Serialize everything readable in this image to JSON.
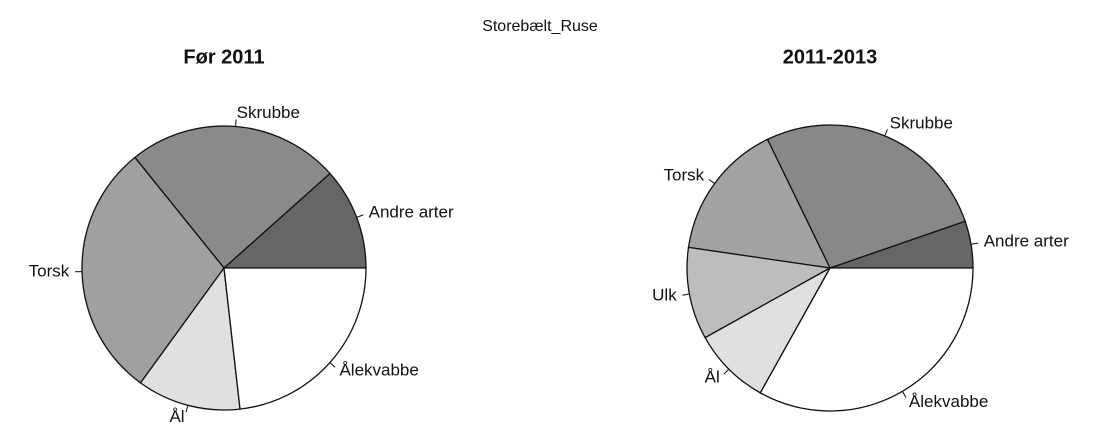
{
  "title": "Storebælt_Ruse",
  "chart_data": [
    {
      "type": "pie",
      "title": "Før 2011",
      "categories": [
        "Andre arter",
        "Skrubbe",
        "Torsk",
        "Ål",
        "Ålekvabbe"
      ],
      "values": [
        11.6,
        24.2,
        29.2,
        11.8,
        23.2
      ],
      "colors": [
        "#666666",
        "#8a8a8a",
        "#a0a0a0",
        "#e0e0e0",
        "#ffffff"
      ]
    },
    {
      "type": "pie",
      "title": "2011-2013",
      "categories": [
        "Andre arter",
        "Skrubbe",
        "Torsk",
        "Ulk",
        "Ål",
        "Ålekvabbe"
      ],
      "values": [
        5.3,
        26.9,
        15.5,
        10.4,
        8.8,
        33.1
      ],
      "colors": [
        "#666666",
        "#888888",
        "#a3a3a3",
        "#bdbdbd",
        "#e0e0e0",
        "#ffffff"
      ]
    }
  ]
}
